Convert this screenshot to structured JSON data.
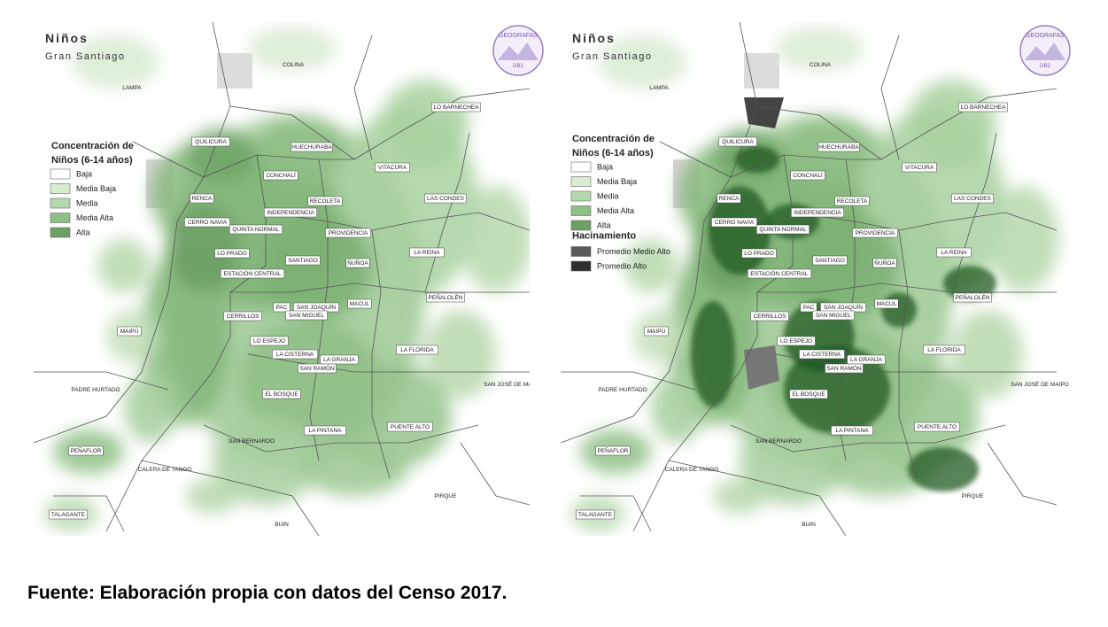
{
  "maps": [
    {
      "title": "Niños",
      "subtitle": "Gran Santiago",
      "logo": {
        "text": "GEOGRAFAS",
        "sub": "DB2"
      },
      "legend": {
        "title_line1": "Concentración de",
        "title_line2": "Niños (6-14 años)",
        "items": [
          {
            "label": "Baja",
            "color": "#ffffff"
          },
          {
            "label": "Media Baja",
            "color": "#d8ecd2"
          },
          {
            "label": "Media",
            "color": "#b6d8ad"
          },
          {
            "label": "Media Alta",
            "color": "#8fbf86"
          },
          {
            "label": "Alta",
            "color": "#6b9f63"
          }
        ]
      }
    },
    {
      "title": "Niños",
      "subtitle": "Gran Santiago",
      "logo": {
        "text": "GEOGRAFAS",
        "sub": "DB2"
      },
      "legend": {
        "title_line1": "Concentración de",
        "title_line2": "Niños (6-14 años)",
        "items": [
          {
            "label": "Baja",
            "color": "#ffffff"
          },
          {
            "label": "Media Baja",
            "color": "#d8ecd2"
          },
          {
            "label": "Media",
            "color": "#b6d8ad"
          },
          {
            "label": "Media Alta",
            "color": "#8fbf86"
          },
          {
            "label": "Alta",
            "color": "#6b9f63"
          }
        ],
        "overlay_title": "Hacinamiento",
        "overlay_items": [
          {
            "label": "Promedio Medio Alto",
            "color": "#5a5a5a"
          },
          {
            "label": "Promedio Alto",
            "color": "#2e2e2e"
          }
        ]
      }
    }
  ],
  "communes": [
    "COLINA",
    "LAMPA",
    "LO BARNECHEA",
    "QUILICURA",
    "HUECHURABA",
    "CONCHALÍ",
    "VITACURA",
    "RENCA",
    "RECOLETA",
    "LAS CONDES",
    "INDEPENDENCIA",
    "CERRO NAVIA",
    "QUINTA NORMAL",
    "PROVIDENCIA",
    "LO PRADO",
    "SANTIAGO",
    "ÑUÑOA",
    "LA REINA",
    "ESTACIÓN CENTRAL",
    "PEÑALOLÉN",
    "PAC",
    "SAN JOAQUÍN",
    "MACUL",
    "CERRILLOS",
    "SAN MIGUEL",
    "MAIPÚ",
    "LO ESPEJO",
    "LA CISTERNA",
    "LA GRANJA",
    "SAN RAMÓN",
    "LA FLORIDA",
    "PADRE HURTADO",
    "EL BOSQUE",
    "SAN JOSÉ DE MAIPO",
    "PUENTE ALTO",
    "LA PINTANA",
    "SAN BERNARDO",
    "PEÑAFLOR",
    "CALERA DE TANGO",
    "PIRQUE",
    "TALAGANTE",
    "BUIN"
  ],
  "footer": "Fuente: Elaboración propia con datos del Censo 2017."
}
